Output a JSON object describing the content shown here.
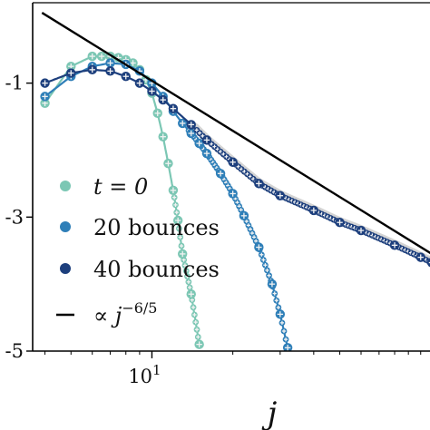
{
  "chart_data": {
    "type": "scatter",
    "xlabel": "j",
    "ylabel": "",
    "x_scale": "log",
    "y_scale": "log",
    "xlim": [
      3.6,
      110
    ],
    "ylim_exponent": [
      -5,
      0.2
    ],
    "x_ticks": [
      {
        "value": 10,
        "base": "10",
        "exp": "1"
      }
    ],
    "y_ticks": [
      {
        "value": -1,
        "label": "-1"
      },
      {
        "value": -3,
        "label": "-3"
      },
      {
        "value": -5,
        "label": "-5"
      }
    ],
    "legend": {
      "placement": "bottom-left",
      "entries": [
        {
          "key": "t0",
          "prefix": "",
          "math": "t = 0",
          "suffix": ""
        },
        {
          "key": "b20",
          "prefix": "",
          "math": "",
          "suffix": "20 bounces"
        },
        {
          "key": "b40",
          "prefix": "",
          "math": "",
          "suffix": "40 bounces"
        },
        {
          "key": "fit",
          "prefix": "∝",
          "math": "j",
          "sup": "−6/5",
          "suffix": ""
        }
      ]
    },
    "colors": {
      "t0": "#7cc7b4",
      "b20": "#2f7fb8",
      "b40": "#1d3f7d",
      "fit": "#000000",
      "band": "#d4d4d4"
    },
    "series": [
      {
        "name": "t = 0",
        "key": "t0",
        "marker": "circle-plus",
        "x": [
          4,
          5,
          6,
          6.5,
          7,
          7.5,
          8,
          8.5,
          9,
          9.5,
          10,
          10.5,
          11,
          11.5,
          12,
          12.5,
          13,
          14,
          15
        ],
        "y": [
          -1.3,
          -0.75,
          -0.6,
          -0.6,
          -0.6,
          -0.62,
          -0.65,
          -0.7,
          -0.8,
          -0.95,
          -1.15,
          -1.45,
          -1.8,
          -2.2,
          -2.6,
          -3.05,
          -3.55,
          -4.15,
          -4.9
        ]
      },
      {
        "name": "20 bounces",
        "key": "b20",
        "marker": "circle-plus",
        "x": [
          4,
          5,
          6,
          7,
          8,
          9,
          10,
          11,
          12,
          13,
          14,
          15,
          16,
          18,
          20,
          22,
          25,
          28,
          30,
          32
        ],
        "y": [
          -1.2,
          -0.9,
          -0.75,
          -0.7,
          -0.72,
          -0.82,
          -1.0,
          -1.2,
          -1.42,
          -1.6,
          -1.75,
          -1.9,
          -2.05,
          -2.35,
          -2.65,
          -2.98,
          -3.45,
          -4.0,
          -4.45,
          -4.95
        ]
      },
      {
        "name": "40 bounces",
        "key": "b40",
        "marker": "circle-plus",
        "x": [
          4,
          5,
          6,
          7,
          8,
          9,
          10,
          11,
          12,
          14,
          16,
          20,
          25,
          30,
          40,
          50,
          60,
          80,
          100,
          110
        ],
        "y": [
          -1.0,
          -0.85,
          -0.8,
          -0.82,
          -0.9,
          -1.0,
          -1.12,
          -1.25,
          -1.38,
          -1.62,
          -1.85,
          -2.18,
          -2.5,
          -2.68,
          -2.9,
          -3.08,
          -3.2,
          -3.42,
          -3.6,
          -3.68
        ]
      }
    ],
    "reference_line": {
      "name": "∝ j^−6/5",
      "key": "fit",
      "x": [
        3.9,
        110
      ],
      "y": [
        0.05,
        -3.55
      ]
    }
  }
}
